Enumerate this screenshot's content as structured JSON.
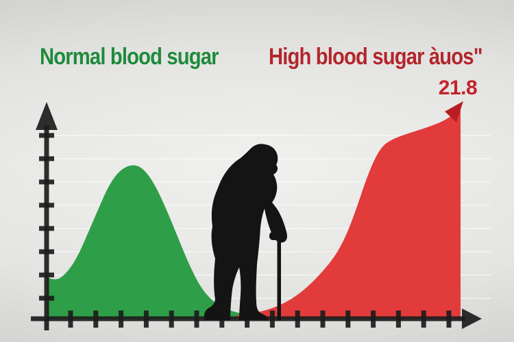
{
  "titles": {
    "normal": {
      "text": "Normal blood sugar",
      "color": "#1f8a3c"
    },
    "high": {
      "text": "High blood sugar àuos\"",
      "color": "#b2262c"
    }
  },
  "peak_label": {
    "text": "21.8",
    "color": "#c2232a"
  },
  "chart_data": {
    "type": "area",
    "title": "Normal blood sugar vs High blood sugar",
    "xlabel": "",
    "ylabel": "",
    "tick_labels": "none",
    "x_tick_count": 16,
    "y_tick_count": 8,
    "grid": {
      "visible": true,
      "color": "#ffffff",
      "opacity": 0.45
    },
    "axis": {
      "color": "#1c1c1c",
      "arrowheads": true
    },
    "background": "#e8e8e6",
    "series": [
      {
        "name": "normal",
        "label": "Normal blood sugar",
        "color": "#2f9e48",
        "shape": "bell curve",
        "points": [
          [
            0.0,
            0.199
          ],
          [
            0.02,
            0.18
          ],
          [
            0.045,
            0.21
          ],
          [
            0.072,
            0.285
          ],
          [
            0.098,
            0.4
          ],
          [
            0.125,
            0.525
          ],
          [
            0.152,
            0.645
          ],
          [
            0.18,
            0.716
          ],
          [
            0.21,
            0.739
          ],
          [
            0.235,
            0.716
          ],
          [
            0.262,
            0.64
          ],
          [
            0.29,
            0.52
          ],
          [
            0.318,
            0.385
          ],
          [
            0.345,
            0.255
          ],
          [
            0.372,
            0.15
          ],
          [
            0.4,
            0.085
          ],
          [
            0.43,
            0.048
          ],
          [
            0.462,
            0.028
          ],
          [
            0.49,
            0.019
          ],
          [
            0.51,
            0.016
          ]
        ]
      },
      {
        "name": "high",
        "label": "High blood sugar",
        "color": "#e13b3b",
        "shape": "rising s-curve ending in arrow",
        "points": [
          [
            0.459,
            0.016
          ],
          [
            0.5,
            0.026
          ],
          [
            0.54,
            0.046
          ],
          [
            0.575,
            0.075
          ],
          [
            0.61,
            0.118
          ],
          [
            0.64,
            0.17
          ],
          [
            0.665,
            0.222
          ],
          [
            0.69,
            0.281
          ],
          [
            0.712,
            0.35
          ],
          [
            0.732,
            0.438
          ],
          [
            0.75,
            0.536
          ],
          [
            0.766,
            0.631
          ],
          [
            0.782,
            0.716
          ],
          [
            0.798,
            0.785
          ],
          [
            0.815,
            0.833
          ],
          [
            0.838,
            0.86
          ],
          [
            0.865,
            0.88
          ],
          [
            0.9,
            0.902
          ],
          [
            0.935,
            0.925
          ],
          [
            0.965,
            0.951
          ],
          [
            0.985,
            0.98
          ],
          [
            0.997,
            1.0
          ]
        ],
        "end_annotation": {
          "text": "21.8",
          "arrow_color": "#b91d24"
        }
      }
    ],
    "annotations": [
      {
        "text": "21.8",
        "color": "#c2232a",
        "position": "above red curve arrow tip"
      }
    ],
    "decorations": [
      {
        "name": "elderly-man-with-cane-silhouette",
        "color": "#141414",
        "position": "center, standing on x-axis between the two curves"
      }
    ]
  }
}
